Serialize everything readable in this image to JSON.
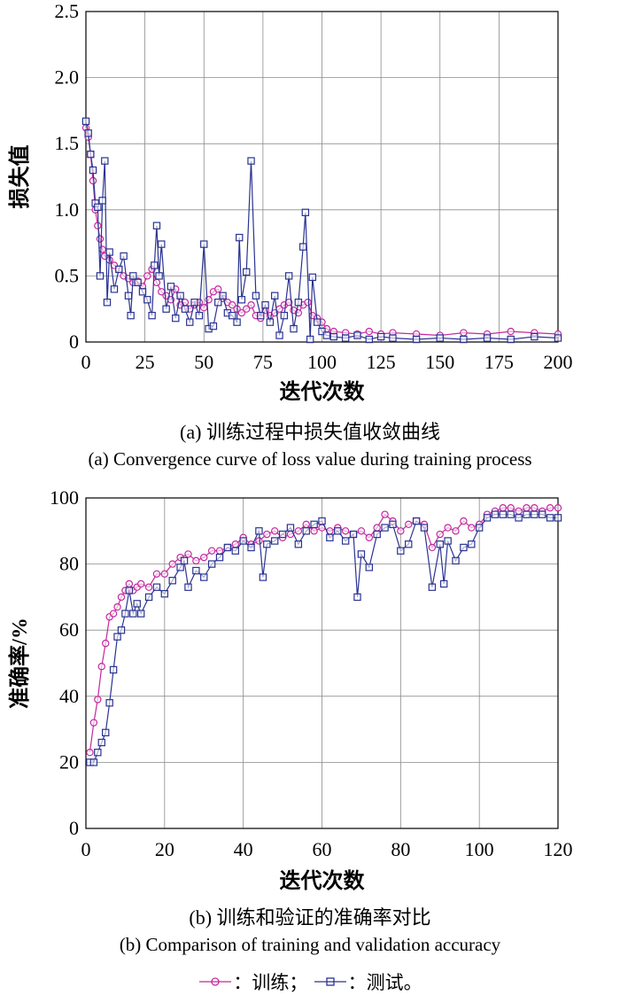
{
  "chart_data": [
    {
      "type": "line",
      "title": "",
      "xlabel": "迭代次数",
      "ylabel": "损失值",
      "xlim": [
        0,
        200
      ],
      "ylim": [
        0,
        2.5
      ],
      "xticks": [
        "0",
        "25",
        "50",
        "75",
        "100",
        "125",
        "150",
        "175",
        "200"
      ],
      "yticks": [
        "0",
        "0.5",
        "1.0",
        "1.5",
        "2.0",
        "2.5"
      ],
      "grid": true,
      "series": [
        {
          "name": "训练",
          "color": "#c4289e",
          "marker": "circle",
          "x": [
            0,
            1,
            2,
            3,
            4,
            5,
            6,
            7,
            8,
            10,
            12,
            14,
            16,
            18,
            20,
            22,
            24,
            26,
            28,
            30,
            32,
            34,
            36,
            38,
            40,
            42,
            44,
            46,
            48,
            50,
            52,
            54,
            56,
            58,
            60,
            62,
            64,
            66,
            68,
            70,
            72,
            74,
            76,
            78,
            80,
            82,
            84,
            86,
            88,
            90,
            92,
            94,
            96,
            98,
            100,
            102,
            105,
            110,
            115,
            120,
            125,
            130,
            140,
            150,
            160,
            170,
            180,
            190,
            200
          ],
          "y": [
            1.62,
            1.55,
            1.42,
            1.22,
            1.0,
            0.88,
            0.78,
            0.7,
            0.65,
            0.62,
            0.58,
            0.55,
            0.5,
            0.48,
            0.45,
            0.46,
            0.42,
            0.5,
            0.55,
            0.45,
            0.38,
            0.35,
            0.32,
            0.4,
            0.28,
            0.3,
            0.25,
            0.28,
            0.3,
            0.26,
            0.32,
            0.38,
            0.4,
            0.33,
            0.3,
            0.28,
            0.25,
            0.22,
            0.25,
            0.28,
            0.2,
            0.18,
            0.24,
            0.2,
            0.22,
            0.25,
            0.28,
            0.3,
            0.24,
            0.22,
            0.28,
            0.3,
            0.2,
            0.18,
            0.15,
            0.1,
            0.08,
            0.07,
            0.06,
            0.08,
            0.06,
            0.07,
            0.06,
            0.05,
            0.07,
            0.06,
            0.08,
            0.07,
            0.06
          ]
        },
        {
          "name": "测试",
          "color": "#2a3391",
          "marker": "square",
          "x": [
            0,
            1,
            2,
            3,
            4,
            5,
            6,
            7,
            8,
            9,
            10,
            12,
            14,
            16,
            18,
            19,
            20,
            22,
            24,
            26,
            28,
            29,
            30,
            31,
            32,
            34,
            36,
            38,
            40,
            42,
            44,
            46,
            48,
            50,
            52,
            54,
            56,
            58,
            60,
            62,
            64,
            65,
            66,
            68,
            70,
            72,
            74,
            76,
            78,
            80,
            82,
            84,
            86,
            88,
            90,
            92,
            93,
            95,
            96,
            98,
            100,
            102,
            105,
            110,
            115,
            120,
            125,
            130,
            140,
            150,
            160,
            170,
            180,
            190,
            200
          ],
          "y": [
            1.67,
            1.58,
            1.42,
            1.3,
            1.05,
            1.02,
            0.5,
            1.07,
            1.37,
            0.3,
            0.68,
            0.4,
            0.55,
            0.65,
            0.35,
            0.2,
            0.5,
            0.45,
            0.38,
            0.32,
            0.2,
            0.58,
            0.88,
            0.5,
            0.74,
            0.25,
            0.42,
            0.18,
            0.35,
            0.25,
            0.15,
            0.3,
            0.2,
            0.74,
            0.1,
            0.12,
            0.3,
            0.35,
            0.22,
            0.2,
            0.15,
            0.79,
            0.32,
            0.53,
            1.37,
            0.35,
            0.2,
            0.28,
            0.15,
            0.35,
            0.05,
            0.2,
            0.5,
            0.1,
            0.3,
            0.72,
            0.98,
            0.02,
            0.49,
            0.15,
            0.08,
            0.05,
            0.04,
            0.03,
            0.05,
            0.02,
            0.04,
            0.03,
            0.02,
            0.03,
            0.02,
            0.03,
            0.02,
            0.04,
            0.03
          ]
        }
      ]
    },
    {
      "type": "line",
      "title": "",
      "xlabel": "迭代次数",
      "ylabel": "准确率/%",
      "xlim": [
        0,
        120
      ],
      "ylim": [
        0,
        100
      ],
      "xticks": [
        "0",
        "20",
        "40",
        "60",
        "80",
        "100",
        "120"
      ],
      "yticks": [
        "0",
        "20",
        "40",
        "60",
        "80",
        "100"
      ],
      "grid": true,
      "series": [
        {
          "name": "训练",
          "color": "#c4289e",
          "marker": "circle",
          "x": [
            1,
            2,
            3,
            4,
            5,
            6,
            7,
            8,
            9,
            10,
            11,
            12,
            13,
            14,
            16,
            18,
            20,
            22,
            24,
            26,
            28,
            30,
            32,
            34,
            36,
            38,
            40,
            42,
            44,
            46,
            48,
            50,
            52,
            54,
            56,
            58,
            60,
            62,
            64,
            66,
            68,
            70,
            72,
            74,
            76,
            78,
            80,
            82,
            84,
            86,
            88,
            90,
            92,
            94,
            96,
            98,
            100,
            102,
            104,
            106,
            108,
            110,
            112,
            114,
            116,
            118,
            120
          ],
          "y": [
            23,
            32,
            39,
            49,
            56,
            64,
            65,
            67,
            70,
            72,
            74,
            72,
            73,
            74,
            73,
            77,
            77,
            80,
            82,
            83,
            81,
            82,
            84,
            84,
            85,
            86,
            88,
            86,
            87,
            89,
            90,
            88,
            89,
            90,
            92,
            90,
            91,
            90,
            91,
            90,
            89,
            90,
            88,
            91,
            95,
            93,
            90,
            92,
            93,
            92,
            85,
            89,
            91,
            90,
            93,
            91,
            92,
            95,
            96,
            97,
            97,
            96,
            97,
            97,
            96,
            97,
            97
          ]
        },
        {
          "name": "测试",
          "color": "#2a3391",
          "marker": "square",
          "x": [
            1,
            2,
            3,
            4,
            5,
            6,
            7,
            8,
            9,
            10,
            11,
            12,
            13,
            14,
            16,
            18,
            20,
            22,
            24,
            25,
            26,
            28,
            30,
            32,
            34,
            36,
            38,
            40,
            42,
            44,
            45,
            46,
            48,
            50,
            52,
            54,
            56,
            58,
            60,
            62,
            64,
            66,
            68,
            69,
            70,
            72,
            74,
            76,
            78,
            80,
            82,
            84,
            86,
            88,
            90,
            91,
            92,
            94,
            96,
            98,
            100,
            102,
            104,
            106,
            108,
            110,
            112,
            114,
            116,
            118,
            120
          ],
          "y": [
            20,
            20,
            23,
            26,
            29,
            38,
            48,
            58,
            60,
            65,
            72,
            65,
            68,
            65,
            70,
            73,
            71,
            75,
            79,
            81,
            73,
            78,
            76,
            80,
            82,
            85,
            84,
            87,
            85,
            90,
            76,
            86,
            87,
            89,
            91,
            86,
            90,
            92,
            93,
            88,
            90,
            87,
            89,
            70,
            83,
            79,
            89,
            91,
            92,
            84,
            86,
            93,
            91,
            73,
            86,
            74,
            87,
            81,
            85,
            86,
            91,
            94,
            95,
            95,
            95,
            94,
            95,
            95,
            95,
            94,
            94
          ]
        }
      ]
    }
  ],
  "captions": {
    "a_zh": "(a) 训练过程中损失值收敛曲线",
    "a_en": "(a) Convergence curve of loss value during training process",
    "b_zh": "(b) 训练和验证的准确率对比",
    "b_en": "(b) Comparison of training and validation accuracy"
  },
  "legend": {
    "train_label": "：训练；",
    "test_label": "：测试。"
  }
}
